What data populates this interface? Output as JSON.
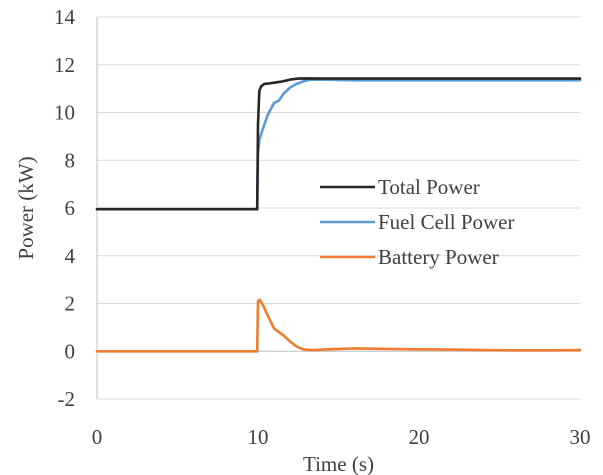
{
  "chart_data": {
    "type": "line",
    "title": "",
    "xlabel": "Time (s)",
    "ylabel": "Power (kW)",
    "xlim": [
      0,
      30
    ],
    "ylim": [
      -2,
      14
    ],
    "xticks": [
      0,
      10,
      20,
      30
    ],
    "yticks": [
      -2,
      0,
      2,
      4,
      6,
      8,
      10,
      12,
      14
    ],
    "grid": "horizontal",
    "legend_position": "center-right",
    "series": [
      {
        "name": "Total Power",
        "color": "#262626",
        "x": [
          0,
          9.95,
          10.0,
          10.08,
          10.2,
          10.4,
          10.7,
          11.0,
          11.5,
          12.0,
          12.5,
          13.0,
          14,
          16,
          18,
          20,
          22,
          24,
          26,
          28,
          30
        ],
        "y": [
          5.95,
          5.95,
          9.5,
          10.9,
          11.1,
          11.2,
          11.22,
          11.25,
          11.3,
          11.38,
          11.42,
          11.43,
          11.42,
          11.42,
          11.42,
          11.42,
          11.42,
          11.42,
          11.42,
          11.42,
          11.42
        ]
      },
      {
        "name": "Fuel Cell Power",
        "color": "#5B9BD5",
        "x": [
          0,
          9.95,
          10.0,
          10.1,
          10.3,
          10.6,
          11.0,
          11.3,
          11.6,
          12.0,
          12.4,
          12.8,
          13.2,
          14,
          16,
          18,
          20,
          22,
          24,
          26,
          28,
          30
        ],
        "y": [
          5.95,
          5.95,
          8.3,
          8.9,
          9.3,
          9.9,
          10.4,
          10.5,
          10.8,
          11.05,
          11.2,
          11.3,
          11.37,
          11.38,
          11.35,
          11.35,
          11.35,
          11.35,
          11.35,
          11.35,
          11.35,
          11.35
        ]
      },
      {
        "name": "Battery Power",
        "color": "#ED7D31",
        "x": [
          0,
          9.95,
          10.0,
          10.1,
          10.3,
          10.6,
          11.0,
          11.3,
          11.6,
          12.0,
          12.4,
          12.8,
          13.2,
          13.6,
          14,
          15,
          16,
          18,
          20,
          22,
          24,
          26,
          28,
          30
        ],
        "y": [
          0.0,
          0.0,
          2.1,
          2.15,
          1.95,
          1.5,
          0.95,
          0.8,
          0.65,
          0.4,
          0.2,
          0.08,
          0.05,
          0.05,
          0.07,
          0.1,
          0.12,
          0.1,
          0.08,
          0.07,
          0.05,
          0.04,
          0.04,
          0.05
        ]
      }
    ]
  }
}
